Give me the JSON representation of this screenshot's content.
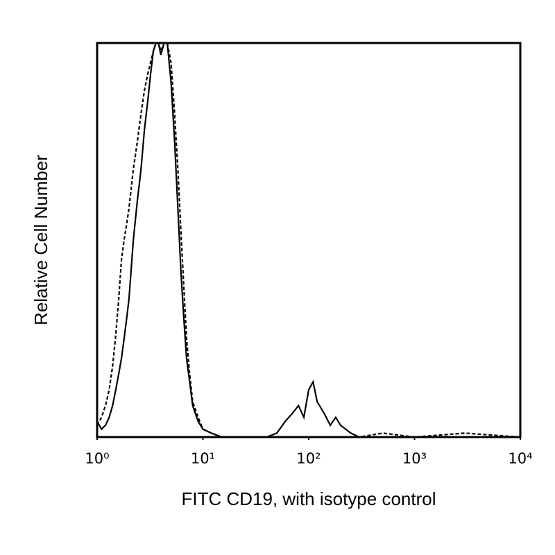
{
  "chart_data": {
    "type": "line",
    "xlabel": "FITC CD19, with isotype control",
    "ylabel": "Relative Cell Number",
    "xscale": "log",
    "xlim": [
      1,
      10000
    ],
    "xticks": [
      {
        "value": 1,
        "label": "10⁰"
      },
      {
        "value": 10,
        "label": "10¹"
      },
      {
        "value": 100,
        "label": "10²"
      },
      {
        "value": 1000,
        "label": "10³"
      },
      {
        "value": 10000,
        "label": "10⁴"
      }
    ],
    "ylim": [
      0,
      100
    ],
    "x": [
      1,
      1.1,
      1.2,
      1.3,
      1.4,
      1.5,
      1.6,
      1.7,
      1.8,
      1.9,
      2.0,
      2.2,
      2.4,
      2.6,
      2.8,
      3.0,
      3.2,
      3.4,
      3.6,
      3.8,
      4.0,
      4.3,
      4.6,
      5.0,
      5.4,
      5.8,
      6.2,
      6.6,
      7.0,
      7.5,
      8,
      9,
      10,
      12,
      15,
      20,
      30,
      40,
      50,
      60,
      70,
      80,
      90,
      100,
      110,
      120,
      140,
      160,
      180,
      200,
      250,
      300,
      500,
      1000,
      3000,
      10000
    ],
    "series": [
      {
        "color": "#000000",
        "line_style": "solid",
        "values": [
          4,
          2,
          3,
          5,
          8,
          12,
          16,
          20,
          25,
          30,
          35,
          50,
          60,
          68,
          78,
          85,
          92,
          98,
          100,
          100,
          97,
          100,
          100,
          90,
          75,
          58,
          42,
          30,
          20,
          14,
          8,
          4,
          2,
          1,
          0,
          0,
          0,
          0,
          1,
          4,
          6,
          8,
          5,
          12,
          14,
          9,
          6,
          3,
          5,
          3,
          1,
          0,
          0,
          0,
          0,
          0
        ]
      },
      {
        "color": "#000000",
        "line_style": "dashed",
        "values": [
          3,
          5,
          8,
          12,
          18,
          26,
          35,
          45,
          50,
          54,
          58,
          68,
          75,
          82,
          88,
          92,
          95,
          98,
          100,
          100,
          98,
          100,
          100,
          95,
          82,
          68,
          52,
          38,
          25,
          16,
          9,
          5,
          2,
          1,
          0,
          0,
          0,
          0,
          0,
          0,
          0,
          0,
          0,
          0,
          0,
          0,
          0,
          0,
          0,
          0,
          0,
          0,
          1,
          0,
          1,
          0
        ]
      }
    ]
  }
}
